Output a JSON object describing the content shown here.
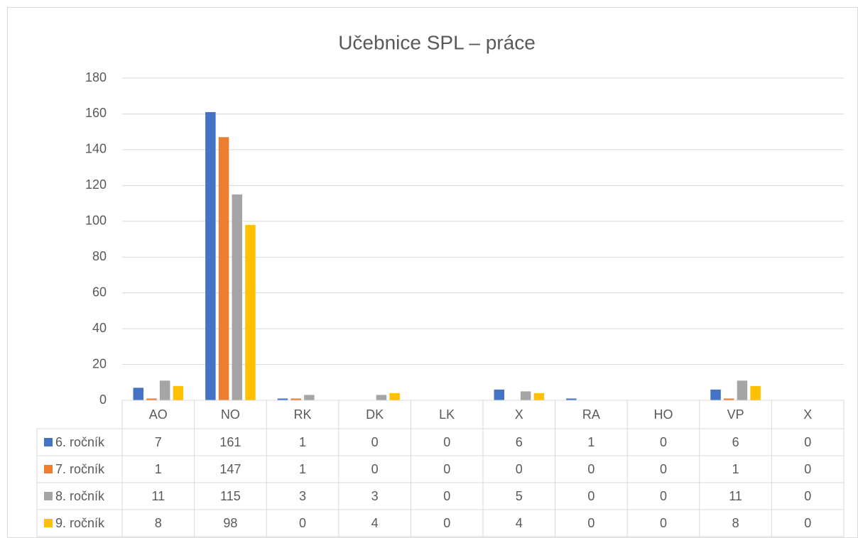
{
  "chart_data": {
    "type": "bar",
    "title": "Učebnice SPL – práce",
    "categories": [
      "AO",
      "NO",
      "RK",
      "DK",
      "LK",
      "X",
      "RA",
      "HO",
      "VP",
      "X"
    ],
    "series": [
      {
        "name": "6. ročník",
        "color": "#4472c4",
        "values": [
          7,
          161,
          1,
          0,
          0,
          6,
          1,
          0,
          6,
          0
        ]
      },
      {
        "name": "7. ročník",
        "color": "#ed7d31",
        "values": [
          1,
          147,
          1,
          0,
          0,
          0,
          0,
          0,
          1,
          0
        ]
      },
      {
        "name": "8. ročník",
        "color": "#a5a5a5",
        "values": [
          11,
          115,
          3,
          3,
          0,
          5,
          0,
          0,
          11,
          0
        ]
      },
      {
        "name": "9. ročník",
        "color": "#ffc000",
        "values": [
          8,
          98,
          0,
          4,
          0,
          4,
          0,
          0,
          8,
          0
        ]
      }
    ],
    "ylim": [
      0,
      180
    ],
    "yticks": [
      0,
      20,
      40,
      60,
      80,
      100,
      120,
      140,
      160,
      180
    ],
    "grid": true
  }
}
